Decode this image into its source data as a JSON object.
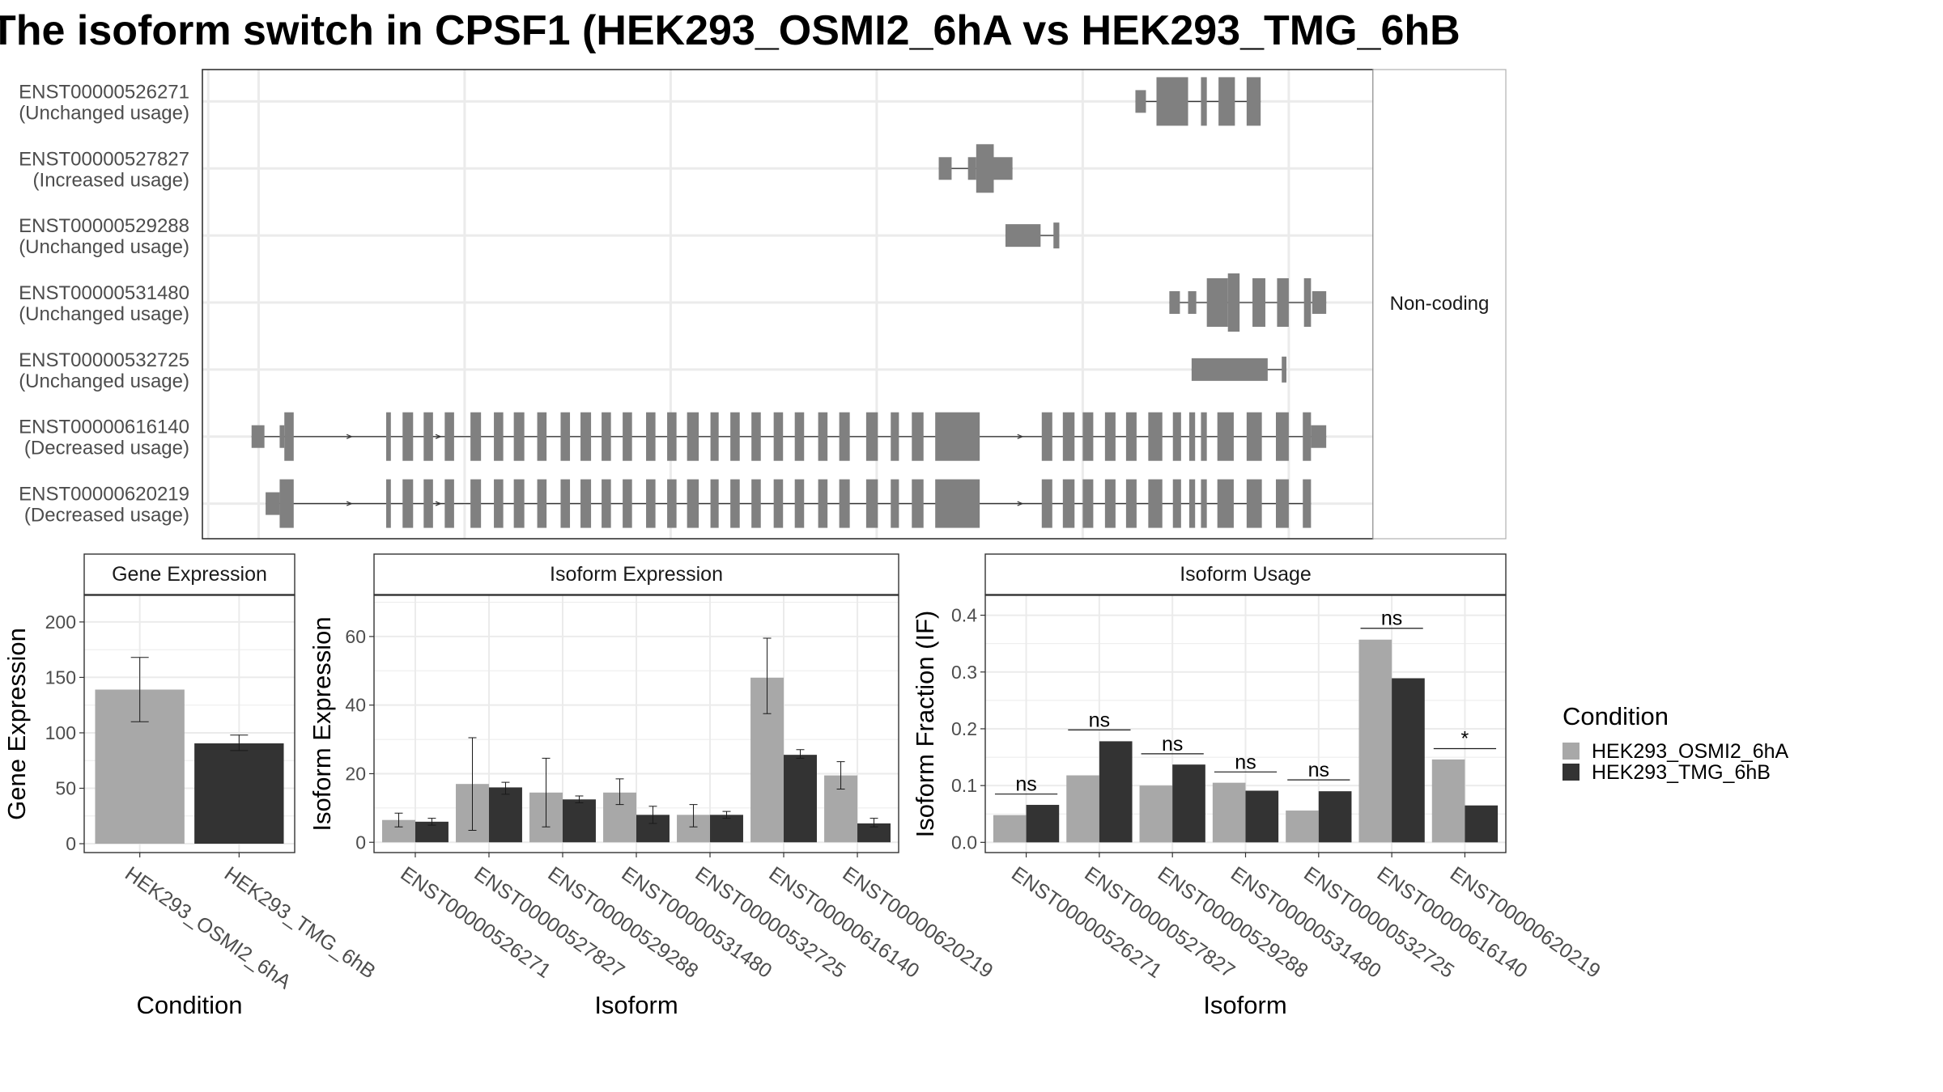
{
  "title": "The isoform switch in CPSF1 (HEK293_OSMI2_6hA vs HEK293_TMG_6hB",
  "colors": {
    "cond_a": "#a8a8a8",
    "cond_b": "#333333",
    "exon": "#808080",
    "grid": "#ebebeb",
    "border": "#333333"
  },
  "structure": {
    "strip_label": "Non-coding",
    "xlim": [
      0,
      1000
    ],
    "transcripts": [
      {
        "id": "ENST00000526271",
        "usage": "(Unchanged usage)",
        "exons": [
          [
            797,
            806,
            "n"
          ],
          [
            815,
            842,
            "w"
          ],
          [
            853,
            858,
            "w"
          ],
          [
            868,
            882,
            "w"
          ],
          [
            892,
            904,
            "w"
          ]
        ],
        "intron": [
          797,
          904
        ]
      },
      {
        "id": "ENST00000527827",
        "usage": "(Increased usage)",
        "exons": [
          [
            629,
            640,
            "n"
          ],
          [
            654,
            661,
            "n"
          ],
          [
            661,
            676,
            "w"
          ],
          [
            676,
            692,
            "n"
          ]
        ],
        "intron": [
          629,
          692
        ]
      },
      {
        "id": "ENST00000529288",
        "usage": "(Unchanged usage)",
        "exons": [
          [
            686,
            716,
            "n"
          ],
          [
            727,
            732,
            "s"
          ]
        ],
        "intron": [
          686,
          732
        ]
      },
      {
        "id": "ENST00000531480",
        "usage": "(Unchanged usage)",
        "exons": [
          [
            826,
            835,
            "n"
          ],
          [
            842,
            849,
            "n"
          ],
          [
            858,
            876,
            "w"
          ],
          [
            876,
            886,
            "w2"
          ],
          [
            897,
            908,
            "w"
          ],
          [
            918,
            928,
            "w"
          ],
          [
            941,
            947,
            "w"
          ],
          [
            948,
            960,
            "n"
          ]
        ],
        "intron": [
          826,
          960
        ]
      },
      {
        "id": "ENST00000532725",
        "usage": "(Unchanged usage)",
        "exons": [
          [
            845,
            910,
            "n"
          ],
          [
            922,
            926,
            "s"
          ]
        ],
        "intron": [
          845,
          926
        ]
      },
      {
        "id": "ENST00000616140",
        "usage": "(Decreased usage)",
        "exons": [
          [
            42,
            53,
            "n"
          ],
          [
            66,
            70,
            "n"
          ],
          [
            70,
            78,
            "w"
          ],
          [
            157,
            161,
            "w"
          ],
          [
            171,
            180,
            "w"
          ],
          [
            189,
            197,
            "w"
          ],
          [
            207,
            215,
            "w"
          ],
          [
            229,
            238,
            "w"
          ],
          [
            249,
            257,
            "w"
          ],
          [
            266,
            275,
            "w"
          ],
          [
            286,
            294,
            "w"
          ],
          [
            306,
            314,
            "w"
          ],
          [
            323,
            332,
            "w"
          ],
          [
            341,
            349,
            "w"
          ],
          [
            359,
            367,
            "w"
          ],
          [
            379,
            387,
            "w"
          ],
          [
            397,
            405,
            "w"
          ],
          [
            414,
            424,
            "w"
          ],
          [
            434,
            441,
            "w"
          ],
          [
            451,
            459,
            "w"
          ],
          [
            469,
            477,
            "w"
          ],
          [
            488,
            496,
            "w"
          ],
          [
            506,
            514,
            "w"
          ],
          [
            526,
            534,
            "w"
          ],
          [
            544,
            553,
            "w"
          ],
          [
            567,
            577,
            "w"
          ],
          [
            588,
            595,
            "w"
          ],
          [
            606,
            616,
            "w"
          ],
          [
            626,
            664,
            "w"
          ],
          [
            717,
            726,
            "w"
          ],
          [
            735,
            745,
            "w"
          ],
          [
            752,
            761,
            "w"
          ],
          [
            771,
            780,
            "w"
          ],
          [
            789,
            798,
            "w"
          ],
          [
            808,
            820,
            "w"
          ],
          [
            829,
            836,
            "w"
          ],
          [
            843,
            848,
            "w"
          ],
          [
            853,
            858,
            "w"
          ],
          [
            867,
            881,
            "w"
          ],
          [
            892,
            905,
            "w"
          ],
          [
            917,
            928,
            "w"
          ],
          [
            940,
            947,
            "w"
          ],
          [
            947,
            960,
            "n"
          ]
        ],
        "intron": [
          42,
          960
        ],
        "arrows": [
          126,
          202,
          547,
          699
        ]
      },
      {
        "id": "ENST00000620219",
        "usage": "(Decreased usage)",
        "exons": [
          [
            54,
            66,
            "n"
          ],
          [
            66,
            78,
            "w"
          ],
          [
            157,
            161,
            "w"
          ],
          [
            171,
            180,
            "w"
          ],
          [
            189,
            197,
            "w"
          ],
          [
            207,
            215,
            "w"
          ],
          [
            229,
            238,
            "w"
          ],
          [
            249,
            257,
            "w"
          ],
          [
            266,
            275,
            "w"
          ],
          [
            286,
            294,
            "w"
          ],
          [
            306,
            314,
            "w"
          ],
          [
            323,
            332,
            "w"
          ],
          [
            341,
            349,
            "w"
          ],
          [
            359,
            367,
            "w"
          ],
          [
            379,
            387,
            "w"
          ],
          [
            397,
            405,
            "w"
          ],
          [
            414,
            424,
            "w"
          ],
          [
            434,
            441,
            "w"
          ],
          [
            451,
            459,
            "w"
          ],
          [
            469,
            477,
            "w"
          ],
          [
            488,
            496,
            "w"
          ],
          [
            506,
            514,
            "w"
          ],
          [
            526,
            534,
            "w"
          ],
          [
            544,
            553,
            "w"
          ],
          [
            567,
            577,
            "w"
          ],
          [
            588,
            595,
            "w"
          ],
          [
            606,
            616,
            "w"
          ],
          [
            626,
            664,
            "w"
          ],
          [
            717,
            726,
            "w"
          ],
          [
            735,
            745,
            "w"
          ],
          [
            752,
            761,
            "w"
          ],
          [
            771,
            780,
            "w"
          ],
          [
            789,
            798,
            "w"
          ],
          [
            808,
            820,
            "w"
          ],
          [
            829,
            836,
            "w"
          ],
          [
            843,
            848,
            "w"
          ],
          [
            853,
            858,
            "w"
          ],
          [
            867,
            881,
            "w"
          ],
          [
            892,
            905,
            "w"
          ],
          [
            917,
            928,
            "w"
          ],
          [
            940,
            947,
            "w"
          ]
        ],
        "intron": [
          54,
          947
        ],
        "arrows": [
          126,
          202,
          547,
          699
        ]
      }
    ]
  },
  "chart_data": [
    {
      "type": "bar",
      "strip": "Gene Expression",
      "categories": [
        "HEK293_OSMI2_6hA",
        "HEK293_TMG_6hB"
      ],
      "values": [
        139,
        90.5
      ],
      "errors": [
        [
          110,
          168
        ],
        [
          84,
          98
        ]
      ],
      "ylim": [
        -8,
        224
      ],
      "yticks": [
        "0",
        "50",
        "100",
        "150",
        "200"
      ],
      "xlabel": "Condition",
      "ylabel": "Gene Expression"
    },
    {
      "type": "bar",
      "strip": "Isoform Expression",
      "categories": [
        "ENST00000526271",
        "ENST00000527827",
        "ENST00000529288",
        "ENST00000531480",
        "ENST00000532725",
        "ENST00000616140",
        "ENST00000620219"
      ],
      "series": [
        {
          "name": "HEK293_OSMI2_6hA",
          "values": [
            6.5,
            17,
            14.5,
            14.5,
            8,
            48,
            19.5
          ],
          "errors": [
            [
              4.5,
              8.5
            ],
            [
              3.5,
              30.5
            ],
            [
              4.5,
              24.5
            ],
            [
              11,
              18.5
            ],
            [
              4.5,
              11
            ],
            [
              37.5,
              59.5
            ],
            [
              15.5,
              23.5
            ]
          ]
        },
        {
          "name": "HEK293_TMG_6hB",
          "values": [
            6,
            16,
            12.5,
            8,
            8,
            25.5,
            5.5
          ],
          "errors": [
            [
              5,
              7
            ],
            [
              14,
              17.5
            ],
            [
              11.5,
              13.5
            ],
            [
              5.5,
              10.5
            ],
            [
              7,
              9
            ],
            [
              24.5,
              27
            ],
            [
              4.5,
              7
            ]
          ]
        }
      ],
      "ylim": [
        -3,
        72
      ],
      "yticks": [
        "0",
        "20",
        "40",
        "60"
      ],
      "xlabel": "Isoform",
      "ylabel": "Isoform Expression"
    },
    {
      "type": "bar",
      "strip": "Isoform Usage",
      "categories": [
        "ENST00000526271",
        "ENST00000527827",
        "ENST00000529288",
        "ENST00000531480",
        "ENST00000532725",
        "ENST00000616140",
        "ENST00000620219"
      ],
      "series": [
        {
          "name": "HEK293_OSMI2_6hA",
          "values": [
            0.048,
            0.118,
            0.1,
            0.105,
            0.056,
            0.357,
            0.146
          ]
        },
        {
          "name": "HEK293_TMG_6hB",
          "values": [
            0.066,
            0.178,
            0.137,
            0.091,
            0.09,
            0.289,
            0.065
          ]
        }
      ],
      "significance": [
        "ns",
        "ns",
        "ns",
        "ns",
        "ns",
        "ns",
        "*"
      ],
      "sig_y": [
        0.085,
        0.198,
        0.156,
        0.124,
        0.11,
        0.377,
        0.165
      ],
      "ylim": [
        -0.018,
        0.435
      ],
      "yticks": [
        "0.0",
        "0.1",
        "0.2",
        "0.3",
        "0.4"
      ],
      "xlabel": "Isoform",
      "ylabel": "Isoform Fraction (IF)"
    }
  ],
  "legend": {
    "title": "Condition",
    "items": [
      "HEK293_OSMI2_6hA",
      "HEK293_TMG_6hB"
    ]
  }
}
